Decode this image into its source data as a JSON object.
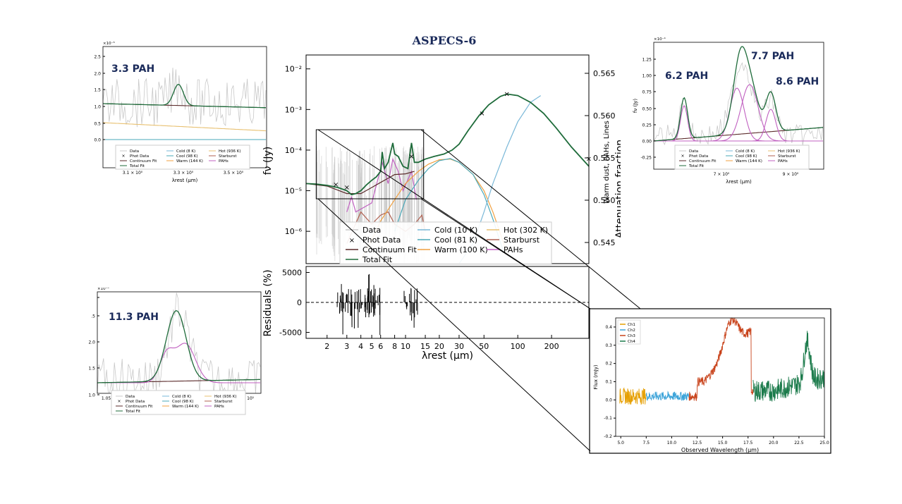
{
  "title": "ASPECS-6",
  "legend_labels": {
    "data": "Data",
    "phot": "Phot Data",
    "continuum": "Continuum Fit",
    "total": "Total Fit",
    "cold": "Cold (10 K)",
    "cool": "Cool (81 K)",
    "warm": "Warm (100 K)",
    "hot": "Hot (302 K)",
    "starburst": "Starburst",
    "pahs": "PAHs"
  },
  "small_legend_labels": {
    "data": "Data",
    "phot": "Phot Data",
    "continuum": "Continuum Fit",
    "total": "Total Fit",
    "cold": "Cold (8 K)",
    "cool": "Cool (98 K)",
    "warm": "Warm (144 K)",
    "hot": "Hot (936 K)",
    "starburst": "Starburst",
    "pahs": "PAHs"
  },
  "labels": {
    "main_ylabel": "fν (Jy)",
    "main_right_ylabel": "Attenuation fraction",
    "main_right_ylabel2": "Warm dust, PAHs, Lines",
    "resid_ylabel": "Residuals (%)",
    "main_xlabel": "λrest (μm)",
    "small_xlabel": "λrest (μm)",
    "small_ylabel": "fν (Jy)",
    "spec_xlabel": "Observed Wavelength (μm)",
    "spec_ylabel": "Flux (mJy)",
    "pah33": "3.3 PAH",
    "pah113": "11.3 PAH",
    "pah62": "6.2 PAH",
    "pah77": "7.7 PAH",
    "pah86": "8.6 PAH",
    "exp_tl": "×10⁻⁵",
    "exp_bl": "×10⁻⁴",
    "exp_tr": "×10⁻⁴"
  },
  "colors": {
    "total": "#1e6b3a",
    "continuum": "#5a2a2a",
    "cold": "#7ab8d8",
    "cool": "#4aa8b8",
    "warm": "#f0a040",
    "hot": "#e8c070",
    "starburst": "#b06050",
    "pahs": "#c060c0",
    "ch1": "#e69f00",
    "ch2": "#3ba3d9",
    "ch3": "#c8421a",
    "ch4": "#1a7a4a",
    "data": "#c8c8c8",
    "title": "#1a2a5a"
  },
  "chart_data": [
    {
      "type": "line",
      "panel": "main",
      "title": "ASPECS-6",
      "xlabel": "λrest (μm)",
      "ylabel": "fν (Jy)",
      "xscale": "log",
      "yscale": "log",
      "xlim": [
        1.3,
        430
      ],
      "ylim": [
        1.6e-07,
        0.022
      ],
      "xticks": [
        2,
        3,
        4,
        5,
        6,
        8,
        10,
        15,
        20,
        30,
        50,
        100,
        200
      ],
      "yticks": [
        "10⁻²",
        "10⁻³",
        "10⁻⁴",
        "10⁻⁵",
        "10⁻⁶"
      ],
      "right_yticks": [
        "0.565",
        "0.560",
        "0.555",
        "0.550",
        "0.545"
      ],
      "series": [
        {
          "name": "Total Fit",
          "x": [
            1.3,
            1.6,
            2.0,
            2.5,
            3.0,
            3.3,
            3.6,
            4.0,
            4.5,
            5.0,
            5.5,
            6.0,
            6.2,
            6.5,
            7.0,
            7.7,
            8.0,
            8.6,
            9.5,
            10.5,
            11.3,
            12,
            13,
            15,
            18,
            22,
            26,
            30,
            36,
            45,
            55,
            70,
            80,
            100,
            130,
            170,
            220,
            300,
            430
          ],
          "y": [
            1.5e-05,
            1.45e-05,
            1.35e-05,
            1.2e-05,
            1e-05,
            8e-06,
            8.5e-06,
            1e-05,
            1.4e-05,
            1.8e-05,
            2.2e-05,
            3e-05,
            9e-05,
            3.5e-05,
            5e-05,
            0.00015,
            8e-05,
            7e-05,
            4e-05,
            3.5e-05,
            0.00015,
            5e-05,
            5e-05,
            6e-05,
            7e-05,
            8e-05,
            0.0001,
            0.00014,
            0.0003,
            0.0007,
            0.0013,
            0.0021,
            0.0024,
            0.0022,
            0.0015,
            0.0008,
            0.00035,
            0.00012,
            4e-05
          ]
        },
        {
          "name": "Continuum Fit",
          "x": [
            1.3,
            2.0,
            3.0,
            4.0,
            5.0,
            6.0,
            8.0,
            10.0,
            12.0
          ],
          "y": [
            1.5e-05,
            1.3e-05,
            8.5e-06,
            8.5e-06,
            1.2e-05,
            1.6e-05,
            2.5e-05,
            2.6e-05,
            3e-05
          ]
        },
        {
          "name": "Cold (10 K)",
          "x": [
            30,
            40,
            50,
            60,
            80,
            100,
            130,
            160
          ],
          "y": [
            1e-07,
            5e-07,
            3e-06,
            1.5e-05,
            0.00012,
            0.0005,
            0.0015,
            0.0022
          ]
        },
        {
          "name": "Cool (81 K)",
          "x": [
            8,
            10,
            13,
            16,
            20,
            25,
            30,
            40,
            50,
            60,
            75
          ],
          "y": [
            1e-06,
            6e-06,
            1.8e-05,
            3.5e-05,
            5.5e-05,
            6.2e-05,
            5e-05,
            2.5e-05,
            8e-06,
            2e-06,
            3e-07
          ]
        },
        {
          "name": "Warm (100 K)",
          "x": [
            4,
            5,
            6,
            8,
            10,
            13,
            16,
            20,
            25,
            30,
            40,
            50,
            60,
            80
          ],
          "y": [
            2e-07,
            6e-07,
            1.8e-06,
            6e-06,
            1.5e-05,
            3e-05,
            4.5e-05,
            5.8e-05,
            6e-05,
            5e-05,
            2.5e-05,
            1e-05,
            3e-06,
            3e-07
          ]
        },
        {
          "name": "Starburst",
          "x": [
            3,
            4,
            5,
            6,
            7,
            8,
            10,
            12,
            14,
            15
          ],
          "y": [
            5e-07,
            3e-06,
            1.5e-06,
            2.5e-06,
            3e-06,
            1.5e-06,
            1e-06,
            1.5e-06,
            2.5e-06,
            1e-06
          ]
        },
        {
          "name": "PAHs",
          "x": [
            3,
            3.3,
            3.6,
            5,
            6.2,
            7.0,
            7.7,
            8.6,
            9.5,
            11.3,
            12.5
          ],
          "y": [
            3e-06,
            7e-06,
            3e-06,
            5e-06,
            5e-05,
            1.5e-05,
            6e-05,
            3e-05,
            1e-05,
            3e-05,
            6e-06
          ]
        }
      ],
      "phot_data": {
        "x": [
          2.4,
          3.0,
          11.3,
          48,
          80,
          430
        ],
        "y": [
          1.4e-05,
          1.2e-05,
          7e-05,
          0.0008,
          0.0024,
          6e-05
        ]
      }
    },
    {
      "type": "line",
      "panel": "residuals",
      "ylabel": "Residuals (%)",
      "yticks": [
        5000,
        0,
        -5000
      ],
      "ylim": [
        -6000,
        6000
      ]
    },
    {
      "type": "line",
      "panel": "3.3 PAH",
      "xticks": [
        "3.1×10⁰",
        "3.3×10⁰",
        "3.5×10⁰"
      ],
      "yticks": [
        "2.5",
        "2.0",
        "1.5",
        "1.0",
        "0.5",
        "0.0"
      ],
      "ylim": [
        -0.6,
        2.7
      ],
      "total_y": [
        1.15,
        1.14,
        1.12,
        1.1,
        1.1,
        1.8,
        1.1,
        1.05,
        1.02,
        1.0,
        0.98
      ],
      "continuum_y": [
        1.15,
        0.98
      ],
      "hot_y": [
        0.62,
        0.42
      ]
    },
    {
      "type": "line",
      "panel": "11.3 PAH",
      "xticks": [
        "1.05×10¹",
        "1.1×10",
        "1.15×10¹",
        "1.2×10¹"
      ],
      "yticks": [
        "2.5",
        "2.0",
        "1.5",
        "1.0"
      ],
      "ylim": [
        0.85,
        2.7
      ]
    },
    {
      "type": "line",
      "panel": "6.2 / 7.7 / 8.6 PAH",
      "xticks": [
        "7×10⁰",
        "9×10⁰"
      ],
      "yticks": [
        "1.25",
        "1.00",
        "0.75",
        "0.50",
        "0.25",
        "0.00",
        "-0.25"
      ],
      "ylim": [
        -0.35,
        1.45
      ]
    },
    {
      "type": "line",
      "panel": "observed spectrum",
      "xlabel": "Observed Wavelength (μm)",
      "ylabel": "Flux (mJy)",
      "xlim": [
        4.5,
        25.0
      ],
      "ylim": [
        -0.2,
        0.45
      ],
      "xticks": [
        5.0,
        7.5,
        10.0,
        12.5,
        15.0,
        17.5,
        20.0,
        22.5,
        25.0
      ],
      "yticks": [
        0.4,
        0.3,
        0.2,
        0.1,
        0.0,
        -0.1,
        -0.2
      ],
      "series": [
        {
          "name": "Ch1",
          "range": [
            4.9,
            7.5
          ]
        },
        {
          "name": "Ch2",
          "range": [
            7.5,
            11.7
          ]
        },
        {
          "name": "Ch3",
          "range": [
            11.7,
            18.0
          ]
        },
        {
          "name": "Ch4",
          "range": [
            18.0,
            25.0
          ]
        }
      ]
    }
  ]
}
